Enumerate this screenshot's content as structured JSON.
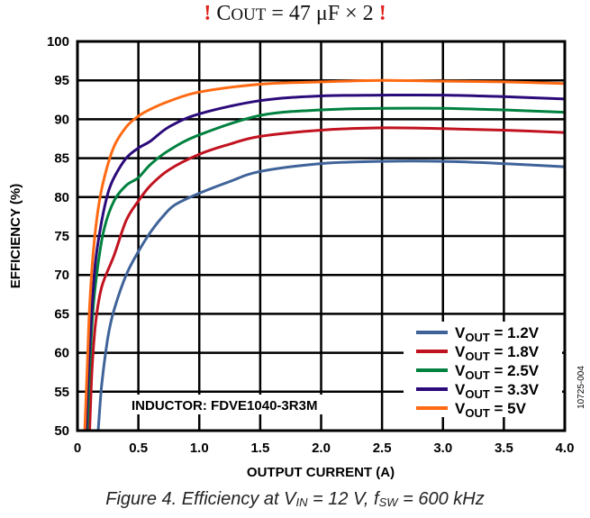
{
  "chart_data": {
    "type": "line",
    "title_parts": {
      "bang_left": "!",
      "prefix": "C",
      "subscript": "OUT",
      "rest": " = 47 μF × 2 ",
      "bang_right": "!"
    },
    "title": "C OUT = 47 μF × 2",
    "xlabel": "OUTPUT CURRENT (A)",
    "ylabel": "EFFICIENCY (%)",
    "xlim": [
      0,
      4.0
    ],
    "ylim": [
      50,
      100
    ],
    "xticks": [
      "0",
      "0.5",
      "1.0",
      "1.5",
      "2.0",
      "2.5",
      "3.0",
      "3.5",
      "4.0"
    ],
    "yticks": [
      "50",
      "55",
      "60",
      "65",
      "70",
      "75",
      "80",
      "85",
      "90",
      "95",
      "100"
    ],
    "grid": true,
    "legend_position": "bottom-right",
    "annotation": "INDUCTOR: FDVE1040-3R3M",
    "figure_id": "10725-004",
    "series": [
      {
        "name": "VOUT = 1.2V",
        "legend_main": "V",
        "legend_sub": "OUT",
        "legend_rest": " = 1.2V",
        "color": "#3f6399",
        "x": [
          0.17,
          0.2,
          0.25,
          0.3,
          0.4,
          0.5,
          0.6,
          0.7,
          0.8,
          1.0,
          1.25,
          1.5,
          2.0,
          2.5,
          3.0,
          3.5,
          4.0
        ],
        "y": [
          50,
          56,
          62,
          65.5,
          70,
          73,
          75.5,
          77.5,
          79,
          80.5,
          82,
          83.3,
          84.3,
          84.6,
          84.6,
          84.3,
          83.9
        ]
      },
      {
        "name": "VOUT = 1.8V",
        "legend_main": "V",
        "legend_sub": "OUT",
        "legend_rest": " = 1.8V",
        "color": "#c1121f",
        "x": [
          0.1,
          0.12,
          0.15,
          0.2,
          0.3,
          0.4,
          0.5,
          0.6,
          0.75,
          1.0,
          1.25,
          1.5,
          2.0,
          2.5,
          3.0,
          3.5,
          4.0
        ],
        "y": [
          50,
          58,
          64,
          68.5,
          72.5,
          77,
          79.5,
          81.5,
          83.5,
          85.5,
          86.8,
          87.8,
          88.6,
          88.9,
          88.8,
          88.6,
          88.3
        ]
      },
      {
        "name": "VOUT = 2.5V",
        "legend_main": "V",
        "legend_sub": "OUT",
        "legend_rest": " = 2.5V",
        "color": "#00813f",
        "x": [
          0.08,
          0.1,
          0.13,
          0.17,
          0.22,
          0.3,
          0.4,
          0.5,
          0.6,
          0.75,
          1.0,
          1.5,
          2.0,
          2.5,
          3.0,
          3.5,
          4.0
        ],
        "y": [
          50,
          58,
          66,
          71.5,
          76,
          79.5,
          81.5,
          82.5,
          84.2,
          86,
          88,
          90.5,
          91.2,
          91.4,
          91.4,
          91.2,
          90.9
        ]
      },
      {
        "name": "VOUT = 3.3V",
        "legend_main": "V",
        "legend_sub": "OUT",
        "legend_rest": " = 3.3V",
        "color": "#2b0a7a",
        "x": [
          0.07,
          0.09,
          0.12,
          0.15,
          0.2,
          0.25,
          0.3,
          0.4,
          0.5,
          0.6,
          0.75,
          1.0,
          1.5,
          2.0,
          2.5,
          3.0,
          3.5,
          4.0
        ],
        "y": [
          50,
          58,
          66,
          72,
          77,
          80.5,
          82.5,
          85,
          86.3,
          87.2,
          89,
          90.7,
          92.4,
          93,
          93.1,
          93.1,
          92.9,
          92.6
        ]
      },
      {
        "name": "VOUT = 5V",
        "legend_main": "V",
        "legend_sub": "OUT",
        "legend_rest": " = 5V",
        "color": "#ff6a13",
        "x": [
          0.06,
          0.08,
          0.1,
          0.13,
          0.17,
          0.22,
          0.3,
          0.4,
          0.5,
          0.6,
          0.75,
          1.0,
          1.5,
          2.0,
          2.5,
          3.0,
          3.5,
          4.0
        ],
        "y": [
          50,
          58,
          66,
          73,
          78.5,
          82.5,
          86.5,
          89,
          90.4,
          91.3,
          92.3,
          93.5,
          94.5,
          94.8,
          95,
          94.9,
          94.8,
          94.6
        ]
      }
    ]
  },
  "caption_parts": {
    "prefix": "Figure 4. Efficiency at V",
    "sub1": "IN",
    "mid": " = 12 V, f",
    "sub2": "SW",
    "suffix": " = 600 kHz"
  }
}
